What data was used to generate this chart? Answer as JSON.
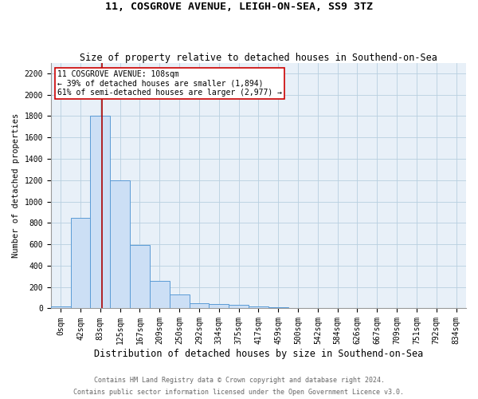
{
  "title": "11, COSGROVE AVENUE, LEIGH-ON-SEA, SS9 3TZ",
  "subtitle": "Size of property relative to detached houses in Southend-on-Sea",
  "xlabel": "Distribution of detached houses by size in Southend-on-Sea",
  "ylabel": "Number of detached properties",
  "footnote1": "Contains HM Land Registry data © Crown copyright and database right 2024.",
  "footnote2": "Contains public sector information licensed under the Open Government Licence v3.0.",
  "bar_labels": [
    "0sqm",
    "42sqm",
    "83sqm",
    "125sqm",
    "167sqm",
    "209sqm",
    "250sqm",
    "292sqm",
    "334sqm",
    "375sqm",
    "417sqm",
    "459sqm",
    "500sqm",
    "542sqm",
    "584sqm",
    "626sqm",
    "667sqm",
    "709sqm",
    "751sqm",
    "792sqm",
    "834sqm"
  ],
  "bar_values": [
    20,
    848,
    1800,
    1200,
    590,
    255,
    130,
    45,
    40,
    32,
    18,
    12,
    0,
    0,
    0,
    0,
    0,
    0,
    0,
    0,
    0
  ],
  "bar_color": "#ccdff5",
  "bar_edgecolor": "#5b9bd5",
  "bar_linewidth": 0.7,
  "grid_color": "#b8cfe0",
  "background_color": "#e8f0f8",
  "annotation_line_color": "#aa0000",
  "annotation_text": "11 COSGROVE AVENUE: 108sqm\n← 39% of detached houses are smaller (1,894)\n61% of semi-detached houses are larger (2,977) →",
  "ylim": [
    0,
    2300
  ],
  "yticks": [
    0,
    200,
    400,
    600,
    800,
    1000,
    1200,
    1400,
    1600,
    1800,
    2000,
    2200
  ],
  "title_fontsize": 9.5,
  "subtitle_fontsize": 8.5,
  "xlabel_fontsize": 8.5,
  "ylabel_fontsize": 7.5,
  "tick_fontsize": 7,
  "annot_fontsize": 7,
  "footnote_fontsize": 6
}
